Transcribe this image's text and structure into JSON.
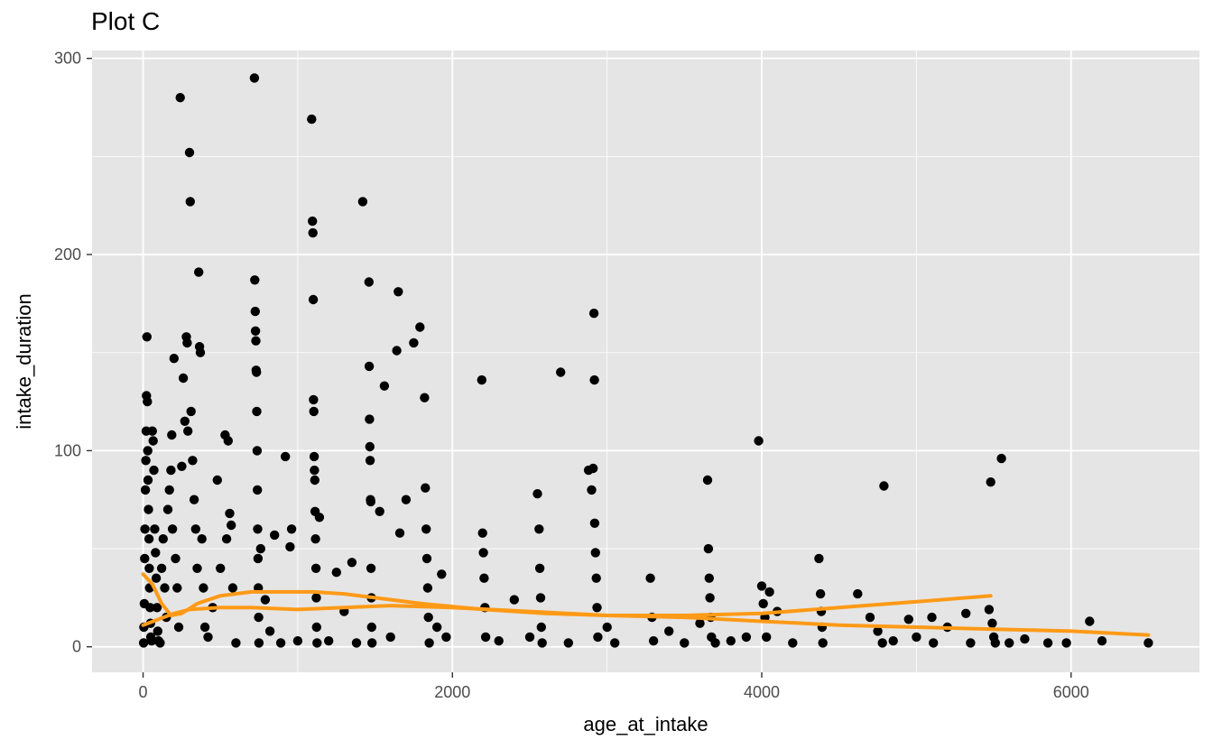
{
  "chart_data": {
    "type": "scatter",
    "title": "Plot C",
    "xlabel": "age_at_intake",
    "ylabel": "intake_duration",
    "xlim": [
      -330,
      6830
    ],
    "ylim": [
      -13,
      304
    ],
    "x_ticks": [
      0,
      2000,
      4000,
      6000
    ],
    "y_ticks": [
      0,
      100,
      200,
      300
    ],
    "grid": true,
    "colors": {
      "panel_background": "#e5e5e5",
      "grid": "#ffffff",
      "points": "#000000",
      "smooth_line": "#ff9a17"
    },
    "points": [
      [
        3,
        2
      ],
      [
        5,
        10
      ],
      [
        8,
        22
      ],
      [
        10,
        45
      ],
      [
        12,
        60
      ],
      [
        15,
        80
      ],
      [
        18,
        95
      ],
      [
        20,
        110
      ],
      [
        22,
        128
      ],
      [
        25,
        158
      ],
      [
        28,
        125
      ],
      [
        30,
        100
      ],
      [
        32,
        85
      ],
      [
        35,
        70
      ],
      [
        38,
        55
      ],
      [
        40,
        40
      ],
      [
        42,
        30
      ],
      [
        45,
        20
      ],
      [
        48,
        12
      ],
      [
        50,
        5
      ],
      [
        55,
        3
      ],
      [
        60,
        110
      ],
      [
        65,
        105
      ],
      [
        70,
        90
      ],
      [
        75,
        60
      ],
      [
        80,
        48
      ],
      [
        85,
        35
      ],
      [
        90,
        20
      ],
      [
        95,
        8
      ],
      [
        100,
        3
      ],
      [
        110,
        2
      ],
      [
        120,
        40
      ],
      [
        130,
        55
      ],
      [
        140,
        30
      ],
      [
        150,
        15
      ],
      [
        160,
        70
      ],
      [
        170,
        80
      ],
      [
        180,
        90
      ],
      [
        185,
        108
      ],
      [
        190,
        60
      ],
      [
        200,
        147
      ],
      [
        210,
        45
      ],
      [
        220,
        30
      ],
      [
        230,
        10
      ],
      [
        240,
        280
      ],
      [
        250,
        92
      ],
      [
        260,
        137
      ],
      [
        270,
        115
      ],
      [
        280,
        158
      ],
      [
        285,
        155
      ],
      [
        290,
        110
      ],
      [
        300,
        252
      ],
      [
        305,
        227
      ],
      [
        310,
        120
      ],
      [
        320,
        95
      ],
      [
        330,
        75
      ],
      [
        340,
        60
      ],
      [
        350,
        40
      ],
      [
        360,
        191
      ],
      [
        365,
        153
      ],
      [
        370,
        150
      ],
      [
        380,
        55
      ],
      [
        390,
        30
      ],
      [
        400,
        10
      ],
      [
        420,
        5
      ],
      [
        450,
        20
      ],
      [
        480,
        85
      ],
      [
        500,
        40
      ],
      [
        530,
        108
      ],
      [
        540,
        55
      ],
      [
        550,
        105
      ],
      [
        560,
        68
      ],
      [
        570,
        62
      ],
      [
        580,
        30
      ],
      [
        600,
        2
      ],
      [
        720,
        290
      ],
      [
        722,
        187
      ],
      [
        725,
        171
      ],
      [
        727,
        161
      ],
      [
        729,
        156
      ],
      [
        731,
        141
      ],
      [
        733,
        140
      ],
      [
        735,
        120
      ],
      [
        737,
        100
      ],
      [
        739,
        80
      ],
      [
        741,
        60
      ],
      [
        743,
        45
      ],
      [
        745,
        30
      ],
      [
        747,
        15
      ],
      [
        749,
        2
      ],
      [
        760,
        50
      ],
      [
        790,
        24
      ],
      [
        820,
        8
      ],
      [
        850,
        57
      ],
      [
        890,
        2
      ],
      [
        920,
        97
      ],
      [
        950,
        51
      ],
      [
        960,
        60
      ],
      [
        1000,
        3
      ],
      [
        1090,
        269
      ],
      [
        1095,
        217
      ],
      [
        1098,
        211
      ],
      [
        1100,
        177
      ],
      [
        1102,
        126
      ],
      [
        1104,
        120
      ],
      [
        1106,
        97
      ],
      [
        1108,
        90
      ],
      [
        1110,
        85
      ],
      [
        1112,
        69
      ],
      [
        1115,
        55
      ],
      [
        1118,
        40
      ],
      [
        1120,
        25
      ],
      [
        1122,
        10
      ],
      [
        1125,
        2
      ],
      [
        1140,
        66
      ],
      [
        1200,
        3
      ],
      [
        1250,
        38
      ],
      [
        1300,
        18
      ],
      [
        1350,
        43
      ],
      [
        1380,
        2
      ],
      [
        1420,
        227
      ],
      [
        1460,
        186
      ],
      [
        1462,
        143
      ],
      [
        1464,
        116
      ],
      [
        1466,
        102
      ],
      [
        1468,
        95
      ],
      [
        1470,
        75
      ],
      [
        1472,
        74
      ],
      [
        1474,
        40
      ],
      [
        1476,
        25
      ],
      [
        1478,
        10
      ],
      [
        1480,
        2
      ],
      [
        1530,
        69
      ],
      [
        1560,
        133
      ],
      [
        1600,
        5
      ],
      [
        1640,
        151
      ],
      [
        1650,
        181
      ],
      [
        1660,
        58
      ],
      [
        1700,
        75
      ],
      [
        1750,
        155
      ],
      [
        1790,
        163
      ],
      [
        1820,
        127
      ],
      [
        1825,
        81
      ],
      [
        1830,
        60
      ],
      [
        1835,
        45
      ],
      [
        1840,
        30
      ],
      [
        1845,
        15
      ],
      [
        1850,
        2
      ],
      [
        1900,
        10
      ],
      [
        1930,
        37
      ],
      [
        1960,
        5
      ],
      [
        2190,
        136
      ],
      [
        2195,
        58
      ],
      [
        2200,
        48
      ],
      [
        2205,
        35
      ],
      [
        2210,
        20
      ],
      [
        2215,
        5
      ],
      [
        2300,
        3
      ],
      [
        2400,
        24
      ],
      [
        2500,
        5
      ],
      [
        2550,
        78
      ],
      [
        2560,
        60
      ],
      [
        2565,
        40
      ],
      [
        2570,
        25
      ],
      [
        2575,
        10
      ],
      [
        2580,
        2
      ],
      [
        2700,
        140
      ],
      [
        2750,
        2
      ],
      [
        2880,
        90
      ],
      [
        2900,
        80
      ],
      [
        2910,
        91
      ],
      [
        2915,
        170
      ],
      [
        2918,
        136
      ],
      [
        2920,
        63
      ],
      [
        2925,
        48
      ],
      [
        2930,
        35
      ],
      [
        2935,
        20
      ],
      [
        2940,
        5
      ],
      [
        3000,
        10
      ],
      [
        3050,
        2
      ],
      [
        3280,
        35
      ],
      [
        3290,
        15
      ],
      [
        3300,
        3
      ],
      [
        3400,
        8
      ],
      [
        3500,
        2
      ],
      [
        3600,
        12
      ],
      [
        3650,
        85
      ],
      [
        3655,
        50
      ],
      [
        3660,
        35
      ],
      [
        3665,
        25
      ],
      [
        3670,
        15
      ],
      [
        3675,
        5
      ],
      [
        3700,
        2
      ],
      [
        3800,
        3
      ],
      [
        3900,
        5
      ],
      [
        3980,
        105
      ],
      [
        4000,
        31
      ],
      [
        4010,
        22
      ],
      [
        4020,
        15
      ],
      [
        4030,
        5
      ],
      [
        4050,
        28
      ],
      [
        4100,
        18
      ],
      [
        4200,
        2
      ],
      [
        4370,
        45
      ],
      [
        4380,
        27
      ],
      [
        4385,
        18
      ],
      [
        4390,
        10
      ],
      [
        4395,
        2
      ],
      [
        4620,
        27
      ],
      [
        4700,
        15
      ],
      [
        4750,
        8
      ],
      [
        4780,
        2
      ],
      [
        4790,
        82
      ],
      [
        4850,
        3
      ],
      [
        4950,
        14
      ],
      [
        5000,
        5
      ],
      [
        5100,
        15
      ],
      [
        5110,
        2
      ],
      [
        5200,
        10
      ],
      [
        5320,
        17
      ],
      [
        5350,
        2
      ],
      [
        5470,
        19
      ],
      [
        5480,
        84
      ],
      [
        5490,
        12
      ],
      [
        5500,
        5
      ],
      [
        5510,
        2
      ],
      [
        5550,
        96
      ],
      [
        5600,
        2
      ],
      [
        5700,
        4
      ],
      [
        5850,
        2
      ],
      [
        5970,
        2
      ],
      [
        6120,
        13
      ],
      [
        6200,
        3
      ],
      [
        6500,
        2
      ]
    ],
    "smooth_series": [
      {
        "x": [
          0,
          60,
          120,
          180,
          250,
          350,
          500,
          700,
          900,
          1100,
          1300,
          1500,
          1800,
          2200,
          2600,
          3000,
          3500,
          4000,
          4500,
          5000,
          5500,
          6000,
          6500
        ],
        "y": [
          37,
          32,
          22,
          16,
          17,
          22,
          26,
          28,
          28,
          28,
          27,
          25,
          22,
          19,
          17,
          16,
          15,
          13,
          11,
          10,
          9,
          8,
          6
        ]
      },
      {
        "x": [
          0,
          100,
          200,
          300,
          500,
          700,
          1000,
          1300,
          1600,
          2000,
          2500,
          3000,
          3500,
          4000,
          4500,
          5000,
          5480
        ],
        "y": [
          11,
          14,
          17,
          19,
          20,
          20,
          19,
          20,
          21,
          20,
          18,
          16,
          16,
          17,
          20,
          23,
          26
        ]
      }
    ]
  }
}
